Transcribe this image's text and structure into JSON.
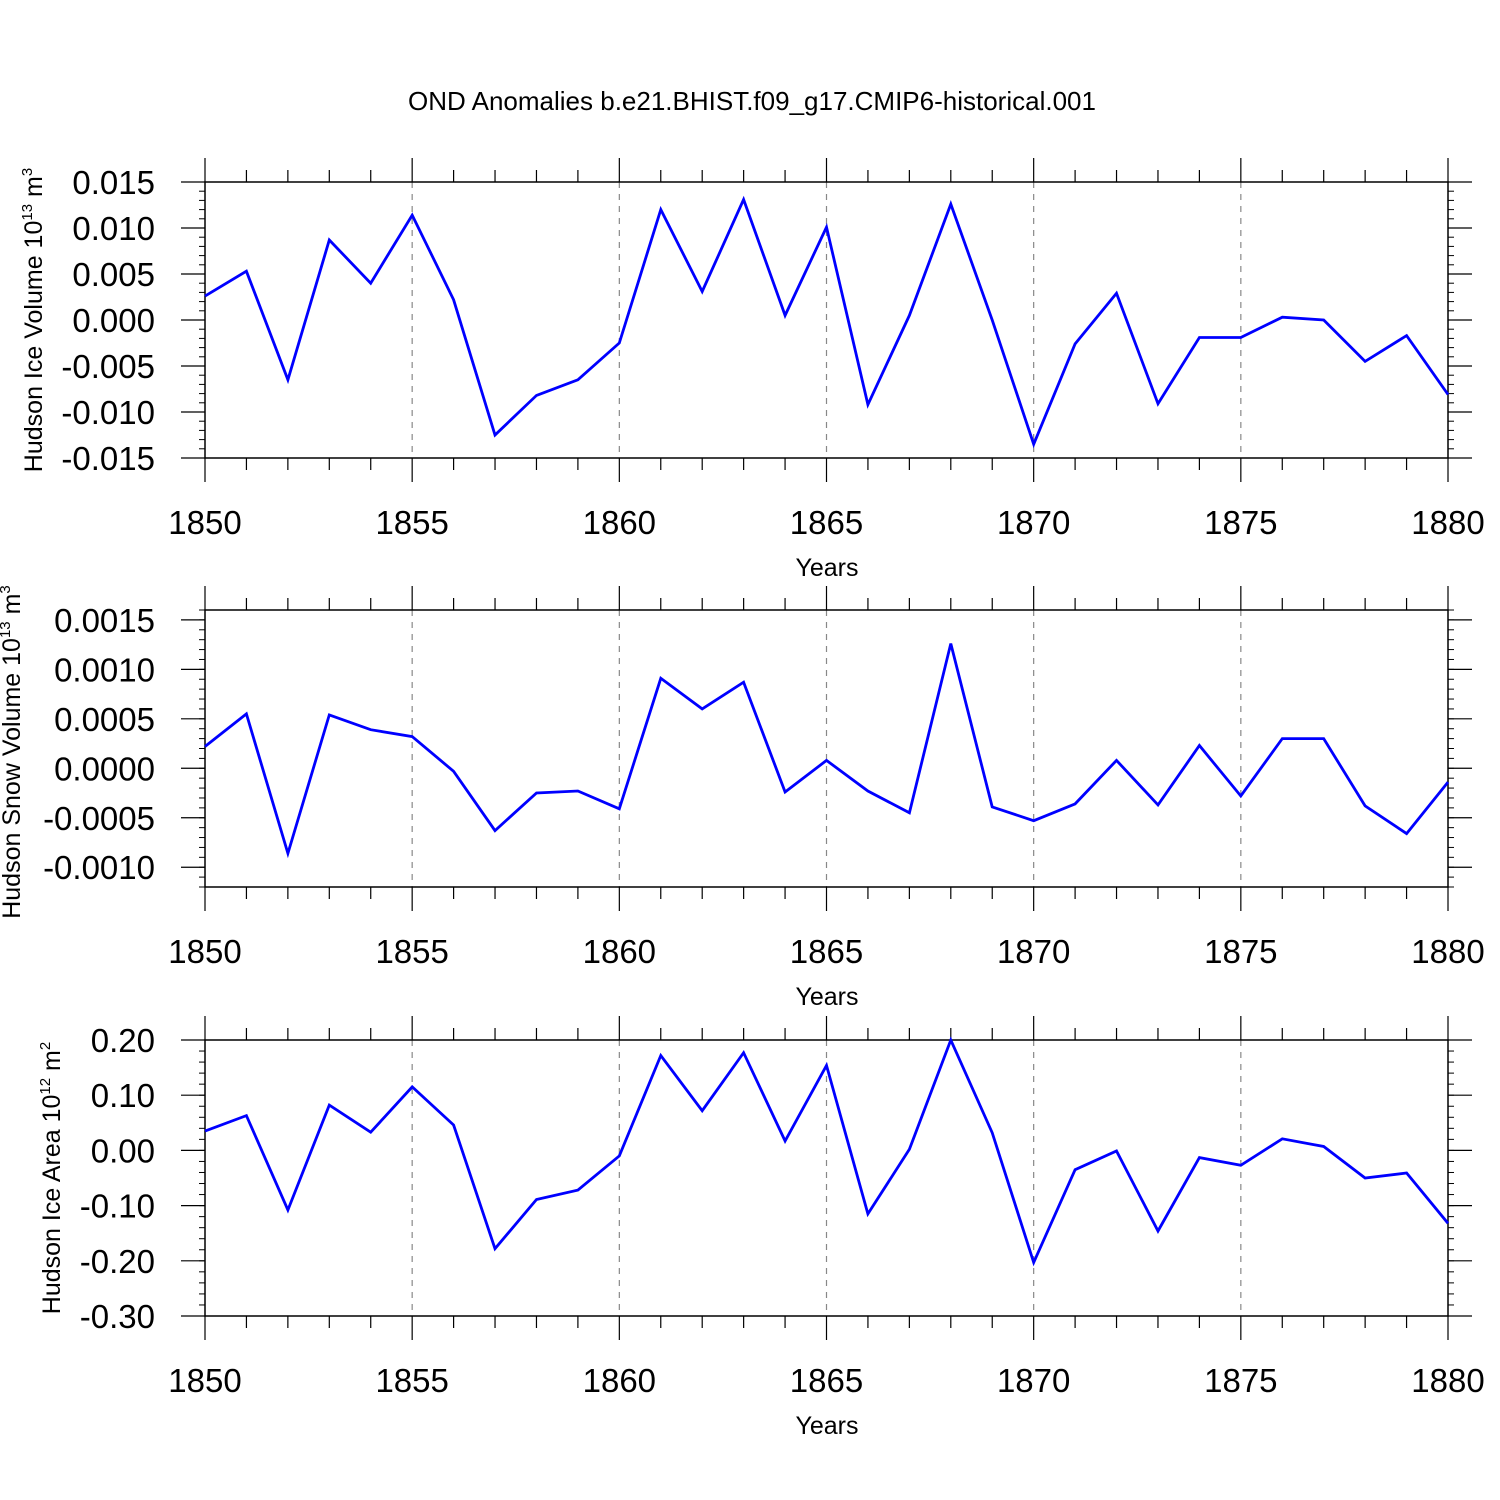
{
  "title": "OND Anomalies b.e21.BHIST.f09_g17.CMIP6-historical.001",
  "line_color": "#0000ff",
  "chart_data": [
    {
      "type": "line",
      "ylabel_main": "Hudson Ice Volume 10",
      "ylabel_exp": "13",
      "ylabel_unit": " m",
      "ylabel_unit_exp": "3",
      "xlabel": "Years",
      "xlim": [
        1850,
        1880
      ],
      "ylim": [
        -0.015,
        0.015
      ],
      "xticks": [
        "1850",
        "1855",
        "1860",
        "1865",
        "1870",
        "1875",
        "1880"
      ],
      "yticks": [
        "0.015",
        "0.010",
        "0.005",
        "0.000",
        "-0.005",
        "-0.010",
        "-0.015"
      ],
      "ytick_values": [
        0.015,
        0.01,
        0.005,
        0.0,
        -0.005,
        -0.01,
        -0.015
      ],
      "x": [
        1850,
        1851,
        1852,
        1853,
        1854,
        1855,
        1856,
        1857,
        1858,
        1859,
        1860,
        1861,
        1862,
        1863,
        1864,
        1865,
        1866,
        1867,
        1868,
        1869,
        1870,
        1871,
        1872,
        1873,
        1874,
        1875,
        1876,
        1877,
        1878,
        1879,
        1880
      ],
      "values": [
        0.0026,
        0.0053,
        -0.0065,
        0.0087,
        0.004,
        0.0114,
        0.0022,
        -0.0125,
        -0.0082,
        -0.0065,
        -0.0025,
        0.012,
        0.0031,
        0.0131,
        0.0005,
        0.0101,
        -0.0092,
        0.0005,
        0.0126,
        0.0,
        -0.0135,
        -0.0026,
        0.0029,
        -0.0091,
        -0.0019,
        -0.0019,
        0.0003,
        0.0,
        -0.0045,
        -0.0017,
        -0.0081
      ]
    },
    {
      "type": "line",
      "ylabel_main": "Hudson Snow Volume 10",
      "ylabel_exp": "13",
      "ylabel_unit": " m",
      "ylabel_unit_exp": "3",
      "xlabel": "Years",
      "xlim": [
        1850,
        1880
      ],
      "ylim": [
        -0.0012,
        0.0016
      ],
      "xticks": [
        "1850",
        "1855",
        "1860",
        "1865",
        "1870",
        "1875",
        "1880"
      ],
      "yticks": [
        "0.0015",
        "0.0010",
        "0.0005",
        "0.0000",
        "-0.0005",
        "-0.0010"
      ],
      "ytick_values": [
        0.0015,
        0.001,
        0.0005,
        0.0,
        -0.0005,
        -0.001
      ],
      "x": [
        1850,
        1851,
        1852,
        1853,
        1854,
        1855,
        1856,
        1857,
        1858,
        1859,
        1860,
        1861,
        1862,
        1863,
        1864,
        1865,
        1866,
        1867,
        1868,
        1869,
        1870,
        1871,
        1872,
        1873,
        1874,
        1875,
        1876,
        1877,
        1878,
        1879,
        1880
      ],
      "values": [
        0.00022,
        0.00055,
        -0.00086,
        0.00054,
        0.00039,
        0.00032,
        -3e-05,
        -0.00063,
        -0.00025,
        -0.00023,
        -0.00041,
        0.00091,
        0.0006,
        0.00087,
        -0.00024,
        8e-05,
        -0.00023,
        -0.00045,
        0.00126,
        -0.00039,
        -0.00053,
        -0.00036,
        8e-05,
        -0.00037,
        0.00023,
        -0.00028,
        0.0003,
        0.0003,
        -0.00038,
        -0.00066,
        -0.00014
      ]
    },
    {
      "type": "line",
      "ylabel_main": "Hudson Ice Area 10",
      "ylabel_exp": "12",
      "ylabel_unit": " m",
      "ylabel_unit_exp": "2",
      "xlabel": "Years",
      "xlim": [
        1850,
        1880
      ],
      "ylim": [
        -0.3,
        0.2
      ],
      "xticks": [
        "1850",
        "1855",
        "1860",
        "1865",
        "1870",
        "1875",
        "1880"
      ],
      "yticks": [
        "0.20",
        "0.10",
        "0.00",
        "-0.10",
        "-0.20",
        "-0.30"
      ],
      "ytick_values": [
        0.2,
        0.1,
        0.0,
        -0.1,
        -0.2,
        -0.3
      ],
      "x": [
        1850,
        1851,
        1852,
        1853,
        1854,
        1855,
        1856,
        1857,
        1858,
        1859,
        1860,
        1861,
        1862,
        1863,
        1864,
        1865,
        1866,
        1867,
        1868,
        1869,
        1870,
        1871,
        1872,
        1873,
        1874,
        1875,
        1876,
        1877,
        1878,
        1879,
        1880
      ],
      "values": [
        0.035,
        0.063,
        -0.108,
        0.082,
        0.033,
        0.115,
        0.046,
        -0.178,
        -0.089,
        -0.072,
        -0.01,
        0.172,
        0.072,
        0.177,
        0.017,
        0.154,
        -0.115,
        0.002,
        0.2,
        0.032,
        -0.203,
        -0.035,
        -0.001,
        -0.146,
        -0.013,
        -0.027,
        0.021,
        0.007,
        -0.05,
        -0.041,
        -0.132
      ]
    }
  ]
}
